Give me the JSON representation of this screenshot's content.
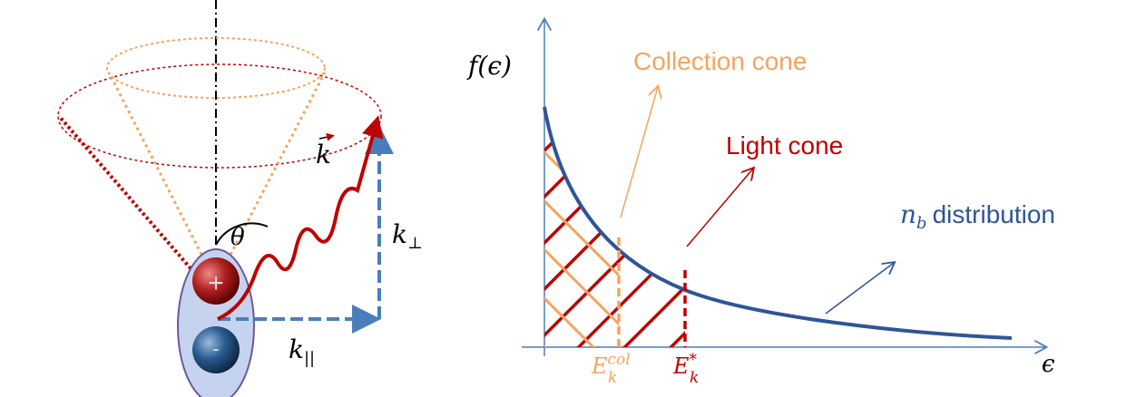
{
  "left": {
    "wave_vector": "k",
    "angle": "θ",
    "k_perp": {
      "base": "k",
      "sub": "⊥"
    },
    "k_par": {
      "base": "k",
      "sub": "||"
    },
    "charges": {
      "positive": "+",
      "negative": "-"
    }
  },
  "right": {
    "y_axis_label": "f(ϵ)",
    "x_axis_label": "ϵ",
    "collection_cone": "Collection cone",
    "light_cone": "Light cone",
    "distribution": {
      "symbol": {
        "base": "n",
        "sub": "b"
      },
      "text": "distribution"
    },
    "e_col": {
      "base": "E",
      "sub": "k",
      "sup": "col"
    },
    "e_star": {
      "base": "E",
      "sub": "k",
      "sup": "*"
    }
  }
}
